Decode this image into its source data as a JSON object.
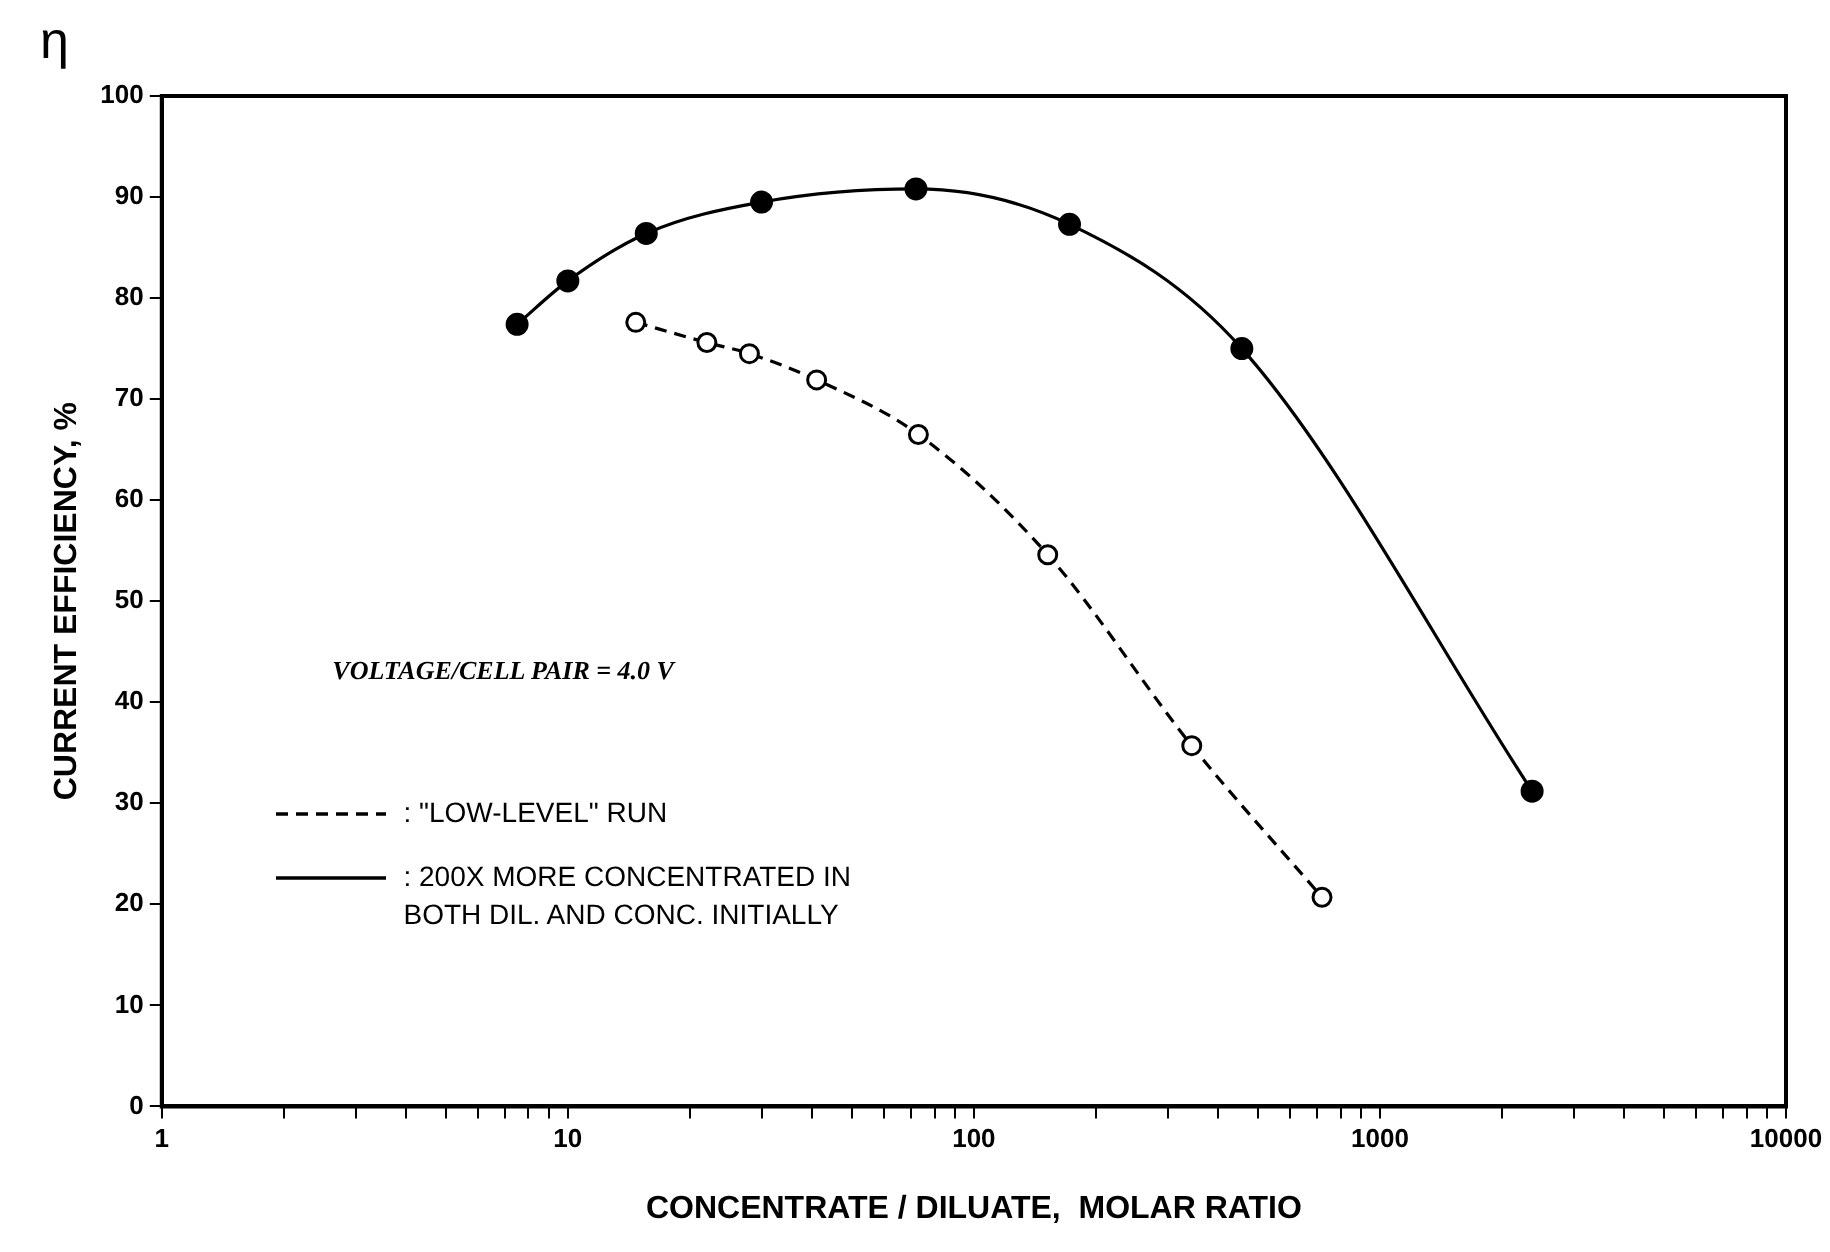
{
  "chart_data": {
    "type": "line",
    "xlabel": "CONCENTRATE / DILUATE,  MOLAR RATIO",
    "ylabel": "CURRENT EFFICIENCY, %",
    "annotations": [
      "η",
      "VOLTAGE/CELL PAIR = 4.0 V"
    ],
    "xlim": [
      1,
      10000
    ],
    "xticks": [
      1,
      {
        "value": 2,
        "label": null
      },
      {
        "value": 3,
        "label": null
      },
      {
        "value": 4,
        "label": null
      },
      {
        "value": 5,
        "label": null
      },
      {
        "value": 6,
        "label": null
      },
      {
        "value": 7,
        "label": null
      },
      {
        "value": 8,
        "label": null
      },
      {
        "value": 9,
        "label": null
      },
      10,
      {
        "value": 20,
        "label": null
      },
      {
        "value": 30,
        "label": null
      },
      {
        "value": 40,
        "label": null
      },
      {
        "value": 50,
        "label": null
      },
      {
        "value": 60,
        "label": null
      },
      {
        "value": 70,
        "label": null
      },
      {
        "value": 80,
        "label": null
      },
      {
        "value": 90,
        "label": null
      },
      100,
      {
        "value": 200,
        "label": null
      },
      {
        "value": 300,
        "label": null
      },
      {
        "value": 400,
        "label": null
      },
      {
        "value": 500,
        "label": null
      },
      {
        "value": 600,
        "label": null
      },
      {
        "value": 700,
        "label": null
      },
      {
        "value": 800,
        "label": null
      },
      {
        "value": 900,
        "label": null
      },
      1000,
      {
        "value": 2000,
        "label": null
      },
      {
        "value": 3000,
        "label": null
      },
      {
        "value": 4000,
        "label": null
      },
      {
        "value": 5000,
        "label": null
      },
      {
        "value": 6000,
        "label": null
      },
      {
        "value": 7000,
        "label": null
      },
      {
        "value": 8000,
        "label": null
      },
      {
        "value": 9000,
        "label": null
      },
      10000
    ],
    "ylim": [
      0,
      100
    ],
    "yticks": [
      0,
      10,
      20,
      30,
      40,
      50,
      60,
      70,
      80,
      90,
      100
    ],
    "log": "x",
    "grid": false,
    "legend": "bottom left",
    "marker": "circle",
    "series": [
      {
        "name": ": \"LOW-LEVEL\" RUN",
        "color": "#000000",
        "line_style": "dashed",
        "x": [
          14.7,
          22,
          28,
          41,
          73,
          152,
          344,
          720
        ],
        "values": [
          77.6,
          75.6,
          74.5,
          71.9,
          66.5,
          54.6,
          35.7,
          20.7
        ]
      },
      {
        "name": ": 200X MORE CONCENTRATED IN BOTH DIL. AND CONC. INITIALLY",
        "color": "#000000",
        "line_style": "solid",
        "x": [
          7.5,
          10,
          15.6,
          30,
          72,
          172,
          457,
          2370
        ],
        "values": [
          77.4,
          81.7,
          86.4,
          89.5,
          90.8,
          87.3,
          75,
          31.2
        ]
      }
    ]
  }
}
